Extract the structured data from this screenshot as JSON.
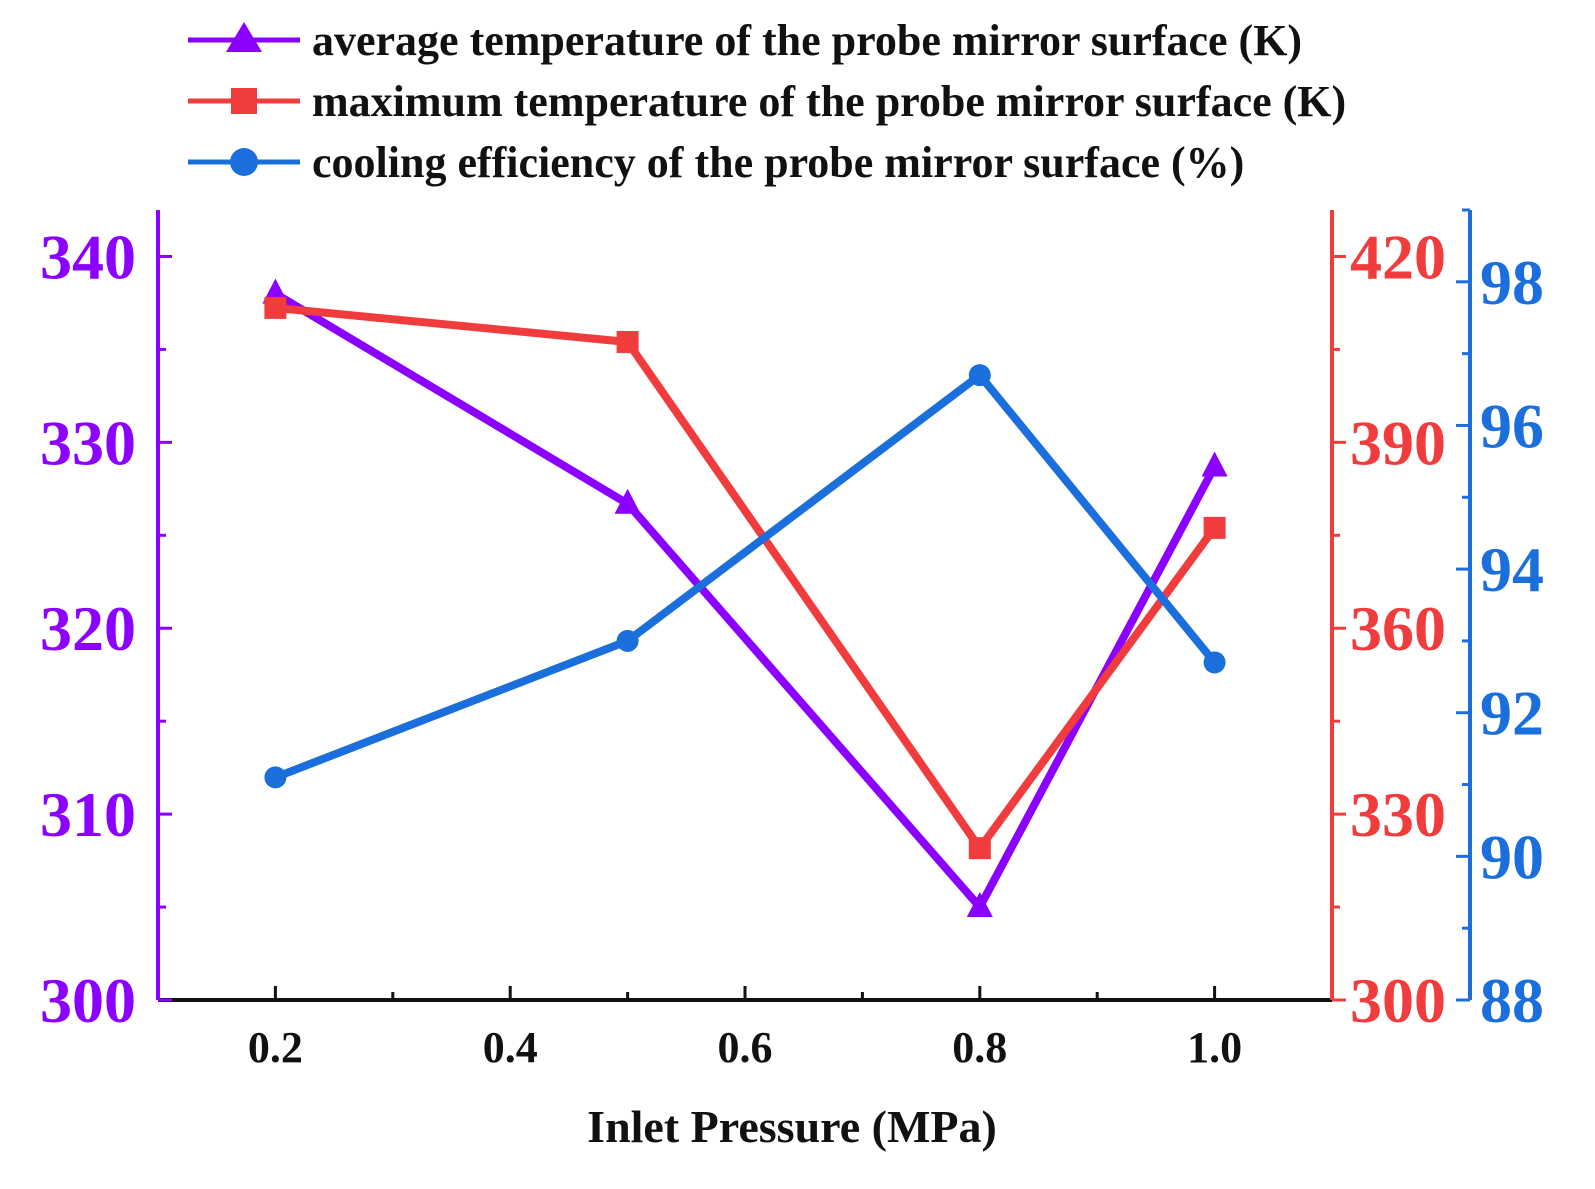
{
  "chart_data": {
    "type": "line",
    "xlabel": "Inlet Pressure (MPa)",
    "x": [
      0.2,
      0.5,
      0.8,
      1.0
    ],
    "xlim": [
      0.1,
      1.1
    ],
    "xticks": [
      0.2,
      0.4,
      0.6,
      0.8,
      1.0
    ],
    "xtick_labels": [
      "0.2",
      "0.4",
      "0.6",
      "0.8",
      "1.0"
    ],
    "axes": {
      "left": {
        "ylim": [
          300,
          342.5
        ],
        "ticks": [
          300,
          310,
          320,
          330,
          340
        ],
        "tick_labels": [
          "300",
          "310",
          "320",
          "330",
          "340"
        ],
        "color": "#8b00ff"
      },
      "right1": {
        "ylim": [
          300,
          427.5
        ],
        "ticks": [
          300,
          330,
          360,
          390,
          420
        ],
        "tick_labels": [
          "300",
          "330",
          "360",
          "390",
          "420"
        ],
        "color": "#f03c3c"
      },
      "right2": {
        "ylim": [
          88,
          99
        ],
        "ticks": [
          88,
          90,
          92,
          94,
          96,
          98
        ],
        "tick_labels": [
          "88",
          "90",
          "92",
          "94",
          "96",
          "98"
        ],
        "color": "#1a6fdc"
      }
    },
    "series": [
      {
        "name": "average temperature of the probe mirror surface (K)",
        "axis": "left",
        "marker": "triangle",
        "color": "#8b00ff",
        "values": [
          338.0,
          326.7,
          305.0,
          328.7
        ]
      },
      {
        "name": "maximum temperature of the probe mirror surface (K)",
        "axis": "right1",
        "marker": "square",
        "color": "#f03c3c",
        "values": [
          411.7,
          406.2,
          324.5,
          376.2
        ]
      },
      {
        "name": "cooling efficiency of the probe mirror surface (%)",
        "axis": "right2",
        "marker": "circle",
        "color": "#1a6fdc",
        "values": [
          91.1,
          93.0,
          96.7,
          92.7
        ]
      }
    ],
    "legend_position": "top",
    "grid": false
  }
}
